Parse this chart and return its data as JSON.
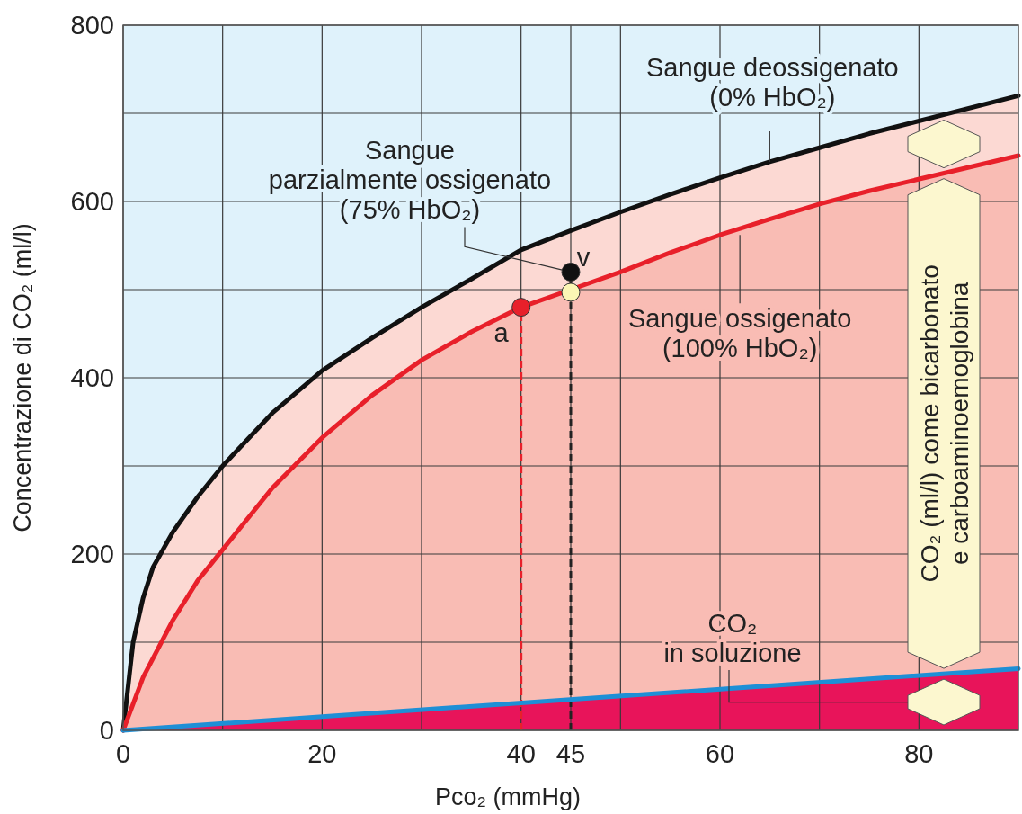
{
  "chart_data": {
    "type": "area",
    "xlabel": "Pco₂ (mmHg)",
    "ylabel": "Concentrazione di CO₂ (ml/l)",
    "xlim": [
      0,
      90
    ],
    "ylim": [
      0,
      800
    ],
    "xticks": [
      0,
      {
        "value": 10,
        "label": null
      },
      20,
      {
        "value": 30,
        "label": null
      },
      40,
      45,
      {
        "value": 50,
        "label": null
      },
      60,
      {
        "value": 70,
        "label": null
      },
      80
    ],
    "yticks": [
      0,
      {
        "value": 100,
        "label": null
      },
      200,
      {
        "value": 300,
        "label": null
      },
      400,
      {
        "value": 500,
        "label": null
      },
      600,
      {
        "value": 700,
        "label": null
      },
      800
    ],
    "grid": true,
    "series": [
      {
        "color": "#fcd9d3",
        "x": [
          0,
          1,
          2,
          3,
          5,
          7.5,
          10,
          15,
          20,
          25,
          30,
          35,
          40,
          45,
          50,
          55,
          60,
          65,
          70,
          75,
          90
        ],
        "values": [
          0,
          100,
          150,
          185,
          225,
          265,
          300,
          360,
          408,
          445,
          480,
          512,
          545,
          567,
          588,
          608,
          627,
          645,
          661,
          677,
          720
        ]
      },
      {
        "color": "#f9bcb4",
        "x": [
          0,
          2,
          5,
          7.5,
          10,
          15,
          20,
          25,
          30,
          35,
          40,
          45,
          50,
          55,
          60,
          65,
          70,
          75,
          90
        ],
        "values": [
          0,
          60,
          125,
          170,
          205,
          275,
          332,
          380,
          420,
          452,
          480,
          500,
          520,
          542,
          562,
          580,
          597,
          612,
          652
        ]
      },
      {
        "color": "#e8145a",
        "x": [
          0,
          90
        ],
        "values": [
          0,
          70
        ]
      },
      {
        "type": "scatter",
        "x": [
          40,
          45,
          45
        ],
        "values": [
          480,
          520,
          497
        ],
        "colors": [
          "#e8202a",
          "#111111",
          "#fbf6b5"
        ]
      }
    ],
    "ref_lines": [
      {
        "axis": "x",
        "value": 40,
        "color": "#e8202a",
        "line_style": "dashed"
      },
      {
        "axis": "x",
        "value": 45,
        "color": "#222222",
        "line_style": "dashed"
      }
    ],
    "annotations": [
      {
        "text": "Sangue deossigenato\n(0% HbO₂)",
        "x": 65,
        "y": 645
      },
      {
        "text": "Sangue\nparzialmente ossigenato\n(75% HbO₂)",
        "x": 45,
        "y": 520
      },
      {
        "text": "Sangue ossigenato\n(100% HbO₂)",
        "x": 62,
        "y": 562
      },
      "CO₂\nin soluzione",
      {
        "text": "a",
        "x": 40,
        "y": 480
      },
      {
        "text": "v",
        "x": 45,
        "y": 520
      },
      "CO₂ (ml/l) come bicarbonato\ne carboaminoemoglobina"
    ]
  }
}
